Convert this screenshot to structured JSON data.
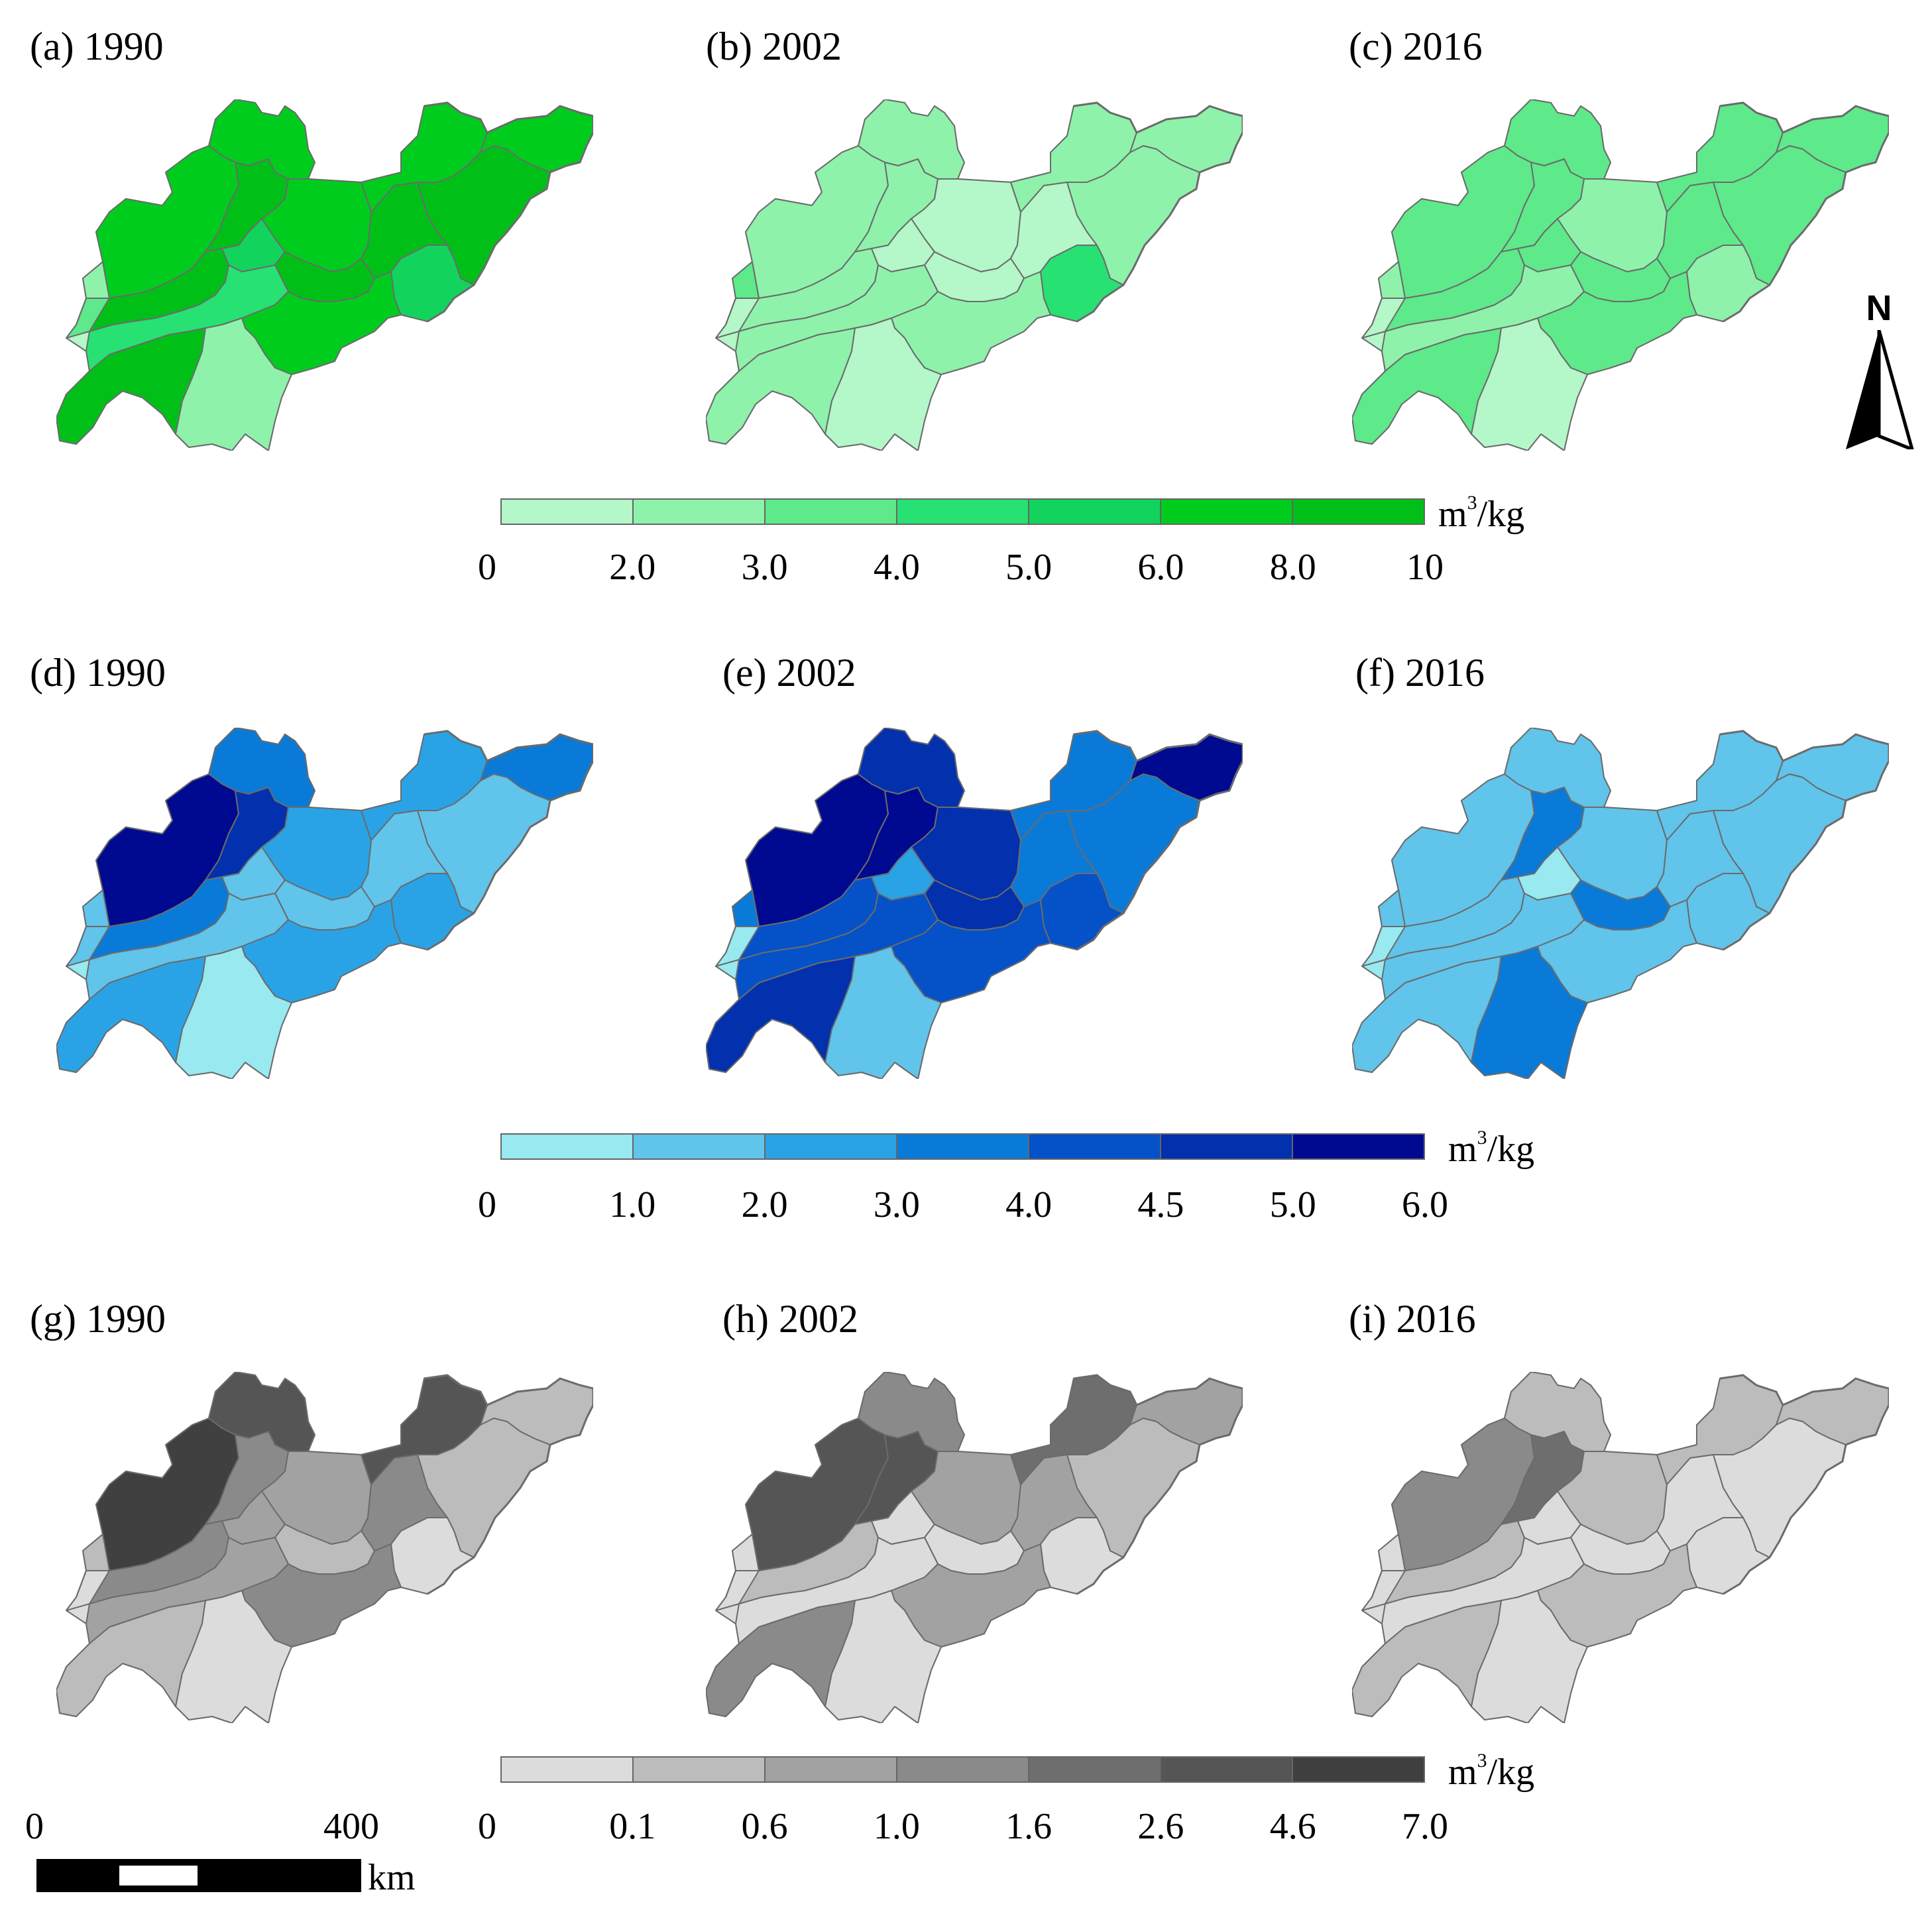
{
  "rows": [
    {
      "palette": [
        "#b4f7c8",
        "#8ef2ab",
        "#5ee98a",
        "#27e173",
        "#12d45d",
        "#00cc1e",
        "#00c018"
      ],
      "unit_base": "m",
      "unit_exp": "3",
      "unit_rest": "/kg",
      "ticks": [
        "0",
        "2.0",
        "3.0",
        "4.0",
        "5.0",
        "6.0",
        "8.0",
        "10"
      ],
      "panels": [
        {
          "title": "(a) 1990",
          "fills": [
            5,
            5,
            6,
            5,
            5,
            5,
            6,
            6,
            6,
            4,
            6,
            4,
            3,
            5,
            6,
            1,
            2,
            1
          ]
        },
        {
          "title": "(b) 2002",
          "fills": [
            1,
            1,
            1,
            0,
            1,
            1,
            1,
            0,
            1,
            0,
            0,
            3,
            1,
            1,
            1,
            0,
            0,
            2
          ]
        },
        {
          "title": "(c) 2016",
          "fills": [
            2,
            2,
            2,
            1,
            2,
            2,
            2,
            2,
            2,
            2,
            2,
            1,
            1,
            2,
            2,
            0,
            0,
            1
          ]
        }
      ]
    },
    {
      "palette": [
        "#98e9f0",
        "#60c4eb",
        "#2aa3e6",
        "#0a7ad8",
        "#0551c7",
        "#0330ad",
        "#000a90"
      ],
      "unit_base": "m",
      "unit_exp": "3",
      "unit_rest": "/kg",
      "ticks": [
        "0",
        "1.0",
        "2.0",
        "3.0",
        "4.0",
        "4.5",
        "5.0",
        "6.0"
      ],
      "panels": [
        {
          "title": "(d) 1990",
          "fills": [
            3,
            6,
            5,
            2,
            2,
            3,
            1,
            1,
            3,
            1,
            1,
            2,
            1,
            2,
            2,
            0,
            1,
            1
          ]
        },
        {
          "title": "(e) 2002",
          "fills": [
            5,
            6,
            6,
            5,
            3,
            6,
            3,
            3,
            4,
            2,
            5,
            4,
            4,
            4,
            5,
            1,
            0,
            3
          ]
        },
        {
          "title": "(f) 2016",
          "fills": [
            1,
            1,
            3,
            1,
            1,
            1,
            1,
            1,
            1,
            0,
            3,
            1,
            1,
            1,
            1,
            3,
            0,
            1
          ]
        }
      ]
    },
    {
      "palette": [
        "#dcdcdc",
        "#bcbcbc",
        "#a2a2a2",
        "#8a8a8a",
        "#6e6e6e",
        "#555555",
        "#404040"
      ],
      "unit_base": "m",
      "unit_exp": "3",
      "unit_rest": "/kg",
      "ticks": [
        "0",
        "0.1",
        "0.6",
        "1.0",
        "1.6",
        "2.6",
        "4.6",
        "7.0"
      ],
      "panels": [
        {
          "title": "(g) 1990",
          "fills": [
            5,
            6,
            3,
            2,
            5,
            1,
            1,
            3,
            3,
            2,
            1,
            0,
            2,
            3,
            1,
            0,
            0,
            1
          ]
        },
        {
          "title": "(h) 2002",
          "fills": [
            3,
            5,
            5,
            2,
            4,
            2,
            1,
            2,
            1,
            0,
            0,
            0,
            0,
            2,
            3,
            0,
            0,
            0
          ]
        },
        {
          "title": "(i) 2016",
          "fills": [
            1,
            3,
            4,
            1,
            1,
            1,
            0,
            0,
            1,
            0,
            0,
            0,
            0,
            1,
            1,
            0,
            0,
            0
          ]
        }
      ]
    }
  ],
  "north_label": "N",
  "scalebar": {
    "start": "0",
    "end": "400",
    "unit": "km"
  }
}
